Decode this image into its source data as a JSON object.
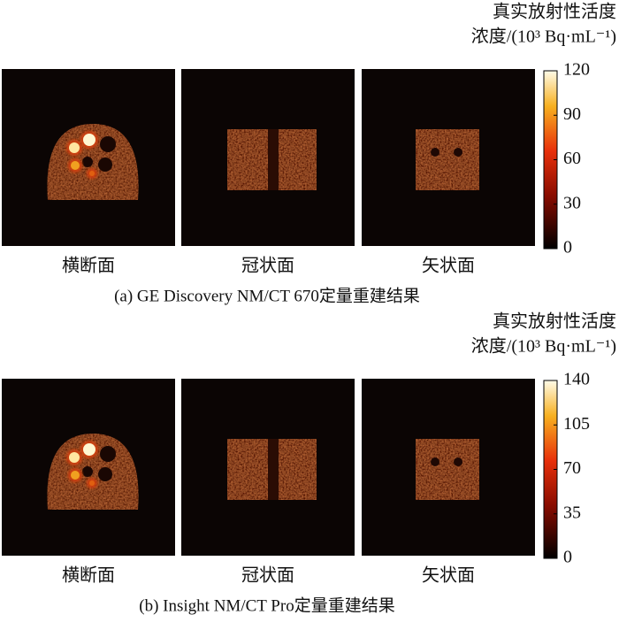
{
  "panels": [
    {
      "views": [
        "横断面",
        "冠状面",
        "矢状面"
      ],
      "colorbar": {
        "title": [
          "真实放射性活度",
          "浓度/(10³ Bq·mL⁻¹)"
        ],
        "lim": [
          0,
          120
        ],
        "ticks": [
          0,
          30,
          60,
          90,
          120
        ]
      },
      "caption": "(a) GE Discovery NM/CT 670定量重建结果"
    },
    {
      "views": [
        "横断面",
        "冠状面",
        "矢状面"
      ],
      "colorbar": {
        "title": [
          "真实放射性活度",
          "浓度/(10³ Bq·mL⁻¹)"
        ],
        "lim": [
          0,
          140
        ],
        "ticks": [
          0,
          35,
          70,
          105,
          140
        ]
      },
      "caption": "(b) Insight NM/CT Pro定量重建结果"
    }
  ]
}
